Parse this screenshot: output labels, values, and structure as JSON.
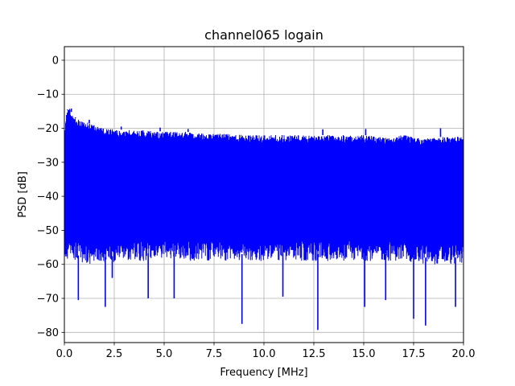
{
  "chart_data": {
    "type": "line",
    "title": "channel065 logain",
    "xlabel": "Frequency [MHz]",
    "ylabel": "PSD [dB]",
    "xlim": [
      0,
      20
    ],
    "ylim": [
      -83,
      4
    ],
    "xticks": [
      0.0,
      2.5,
      5.0,
      7.5,
      10.0,
      12.5,
      15.0,
      17.5,
      20.0
    ],
    "xtick_labels": [
      "0.0",
      "2.5",
      "5.0",
      "7.5",
      "10.0",
      "12.5",
      "15.0",
      "17.5",
      "20.0"
    ],
    "yticks": [
      0,
      -10,
      -20,
      -30,
      -40,
      -50,
      -60,
      -70,
      -80
    ],
    "ytick_labels": [
      "0",
      "−10",
      "−20",
      "−30",
      "−40",
      "−50",
      "−60",
      "−70",
      "−80"
    ],
    "grid": true,
    "series": [
      {
        "color": "#0000ff",
        "envelope": {
          "x": [
            0,
            0.1,
            0.25,
            0.5,
            1,
            1.5,
            2,
            3,
            4,
            5,
            6,
            7,
            8,
            9,
            10,
            11,
            12,
            13,
            14,
            15,
            16,
            17,
            18,
            19,
            20
          ],
          "upper": [
            -22,
            -15,
            -14,
            -17,
            -18,
            -19,
            -20,
            -20.5,
            -20.5,
            -21,
            -21,
            -21.5,
            -21.5,
            -22,
            -22,
            -22,
            -22,
            -22,
            -22,
            -22,
            -22.5,
            -22,
            -23,
            -22.5,
            -22.5
          ],
          "lower": [
            -58,
            -58,
            -57,
            -57,
            -58,
            -58,
            -58,
            -57,
            -57,
            -56,
            -57,
            -57,
            -57,
            -57,
            -57,
            -57,
            -57,
            -57,
            -57,
            -57,
            -57,
            -57,
            -58,
            -58,
            -58
          ]
        },
        "spikes": [
          {
            "x": 0.7,
            "y": -70.5
          },
          {
            "x": 2.05,
            "y": -72.5
          },
          {
            "x": 2.4,
            "y": -64
          },
          {
            "x": 4.2,
            "y": -70
          },
          {
            "x": 5.5,
            "y": -70
          },
          {
            "x": 8.9,
            "y": -77.5
          },
          {
            "x": 10.95,
            "y": -69.5
          },
          {
            "x": 12.7,
            "y": -79.3
          },
          {
            "x": 15.05,
            "y": -72.5
          },
          {
            "x": 16.1,
            "y": -70.5
          },
          {
            "x": 17.5,
            "y": -76
          },
          {
            "x": 18.1,
            "y": -78
          },
          {
            "x": 19.6,
            "y": -72.5
          }
        ],
        "peaks": [
          {
            "x": 0.15,
            "y": -14.5
          },
          {
            "x": 0.35,
            "y": -14.2
          },
          {
            "x": 0.55,
            "y": -16.8
          },
          {
            "x": 1.25,
            "y": -17.5
          },
          {
            "x": 2.85,
            "y": -19.5
          },
          {
            "x": 4.8,
            "y": -19.8
          },
          {
            "x": 6.2,
            "y": -20.2
          },
          {
            "x": 12.95,
            "y": -20.3
          },
          {
            "x": 15.1,
            "y": -20.2
          },
          {
            "x": 18.85,
            "y": -20.0
          }
        ]
      }
    ]
  }
}
